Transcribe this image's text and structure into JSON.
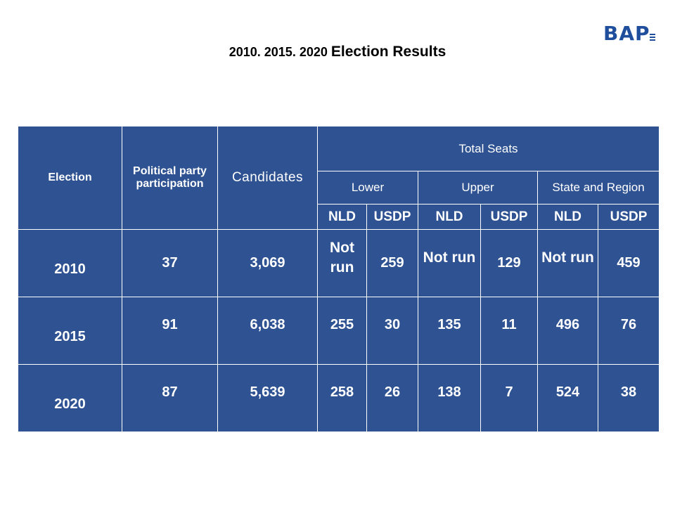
{
  "logo": {
    "text": "BAP"
  },
  "title": {
    "years": "2010. 2015. 2020 ",
    "text": "Election Results"
  },
  "table": {
    "headers": {
      "election": "Election",
      "participation": "Political party participation",
      "candidates": "Candidates",
      "total_seats": "Total Seats",
      "lower": "Lower",
      "upper": "Upper",
      "state_region": "State and Region",
      "parties": [
        "NLD",
        "USDP",
        "NLD",
        "USDP",
        "NLD",
        "USDP"
      ]
    },
    "rows": [
      {
        "year": "2010",
        "participation": "37",
        "candidates": "3,069",
        "lower_nld": "Not run",
        "lower_usdp": "259",
        "upper_nld": "Not run",
        "upper_usdp": "129",
        "sr_nld": "Not run",
        "sr_usdp": "459"
      },
      {
        "year": "2015",
        "participation": "91",
        "candidates": "6,038",
        "lower_nld": "255",
        "lower_usdp": "30",
        "upper_nld": "135",
        "upper_usdp": "11",
        "sr_nld": "496",
        "sr_usdp": "76"
      },
      {
        "year": "2020",
        "participation": "87",
        "candidates": "5,639",
        "lower_nld": "258",
        "lower_usdp": "26",
        "upper_nld": "138",
        "upper_usdp": "7",
        "sr_nld": "524",
        "sr_usdp": "38"
      }
    ]
  }
}
